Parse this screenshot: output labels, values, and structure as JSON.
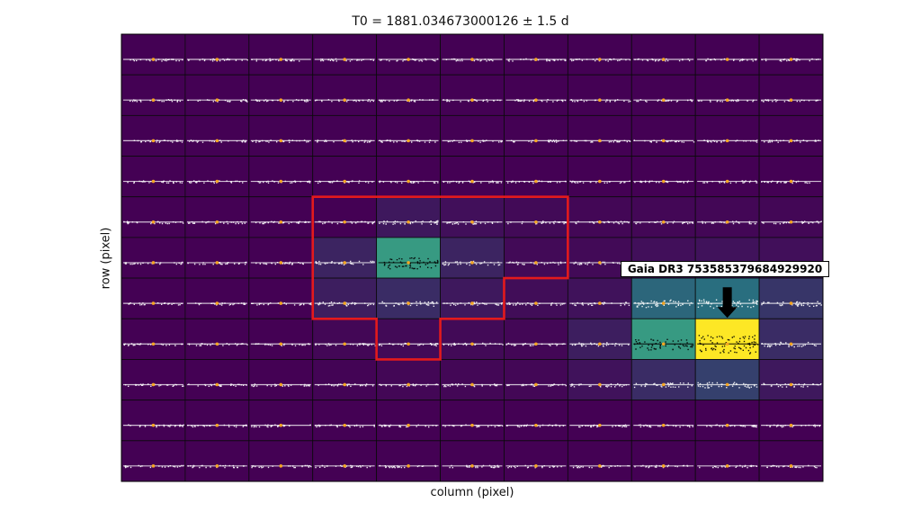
{
  "chart_data": {
    "type": "heatmap",
    "title": "T0 = 1881.034673000126 ± 1.5 d",
    "xlabel": "column (pixel)",
    "ylabel": "row (pixel)",
    "n_rows": 11,
    "n_cols": 11,
    "grid": true,
    "description_values": "per-pixel flux level (0 = dark purple, 1 = yellow), rows listed top to bottom",
    "pixel_levels": [
      [
        0,
        0,
        0,
        0,
        0,
        0,
        0,
        0,
        0,
        0,
        0
      ],
      [
        0,
        0,
        0,
        0,
        0,
        0,
        0,
        0,
        0,
        0,
        0
      ],
      [
        0,
        0,
        0,
        0,
        0,
        0,
        0,
        0,
        0,
        0,
        0
      ],
      [
        0,
        0,
        0,
        0,
        0,
        0,
        0,
        0,
        0,
        0,
        0
      ],
      [
        0,
        0,
        0,
        0,
        0.08,
        0.05,
        0.03,
        0.02,
        0.02,
        0.02,
        0.02
      ],
      [
        0,
        0,
        0,
        0.12,
        0.55,
        0.12,
        0.03,
        0.03,
        0.05,
        0.06,
        0.05
      ],
      [
        0,
        0,
        0,
        0.1,
        0.15,
        0.08,
        0.04,
        0.06,
        0.35,
        0.38,
        0.18
      ],
      [
        0,
        0,
        0,
        0.02,
        0.03,
        0.03,
        0.02,
        0.1,
        0.55,
        1.0,
        0.15
      ],
      [
        0,
        0,
        0,
        0.01,
        0.02,
        0.02,
        0.02,
        0.06,
        0.15,
        0.22,
        0.08
      ],
      [
        0,
        0,
        0,
        0,
        0,
        0,
        0,
        0,
        0,
        0,
        0
      ],
      [
        0,
        0,
        0,
        0,
        0,
        0,
        0,
        0,
        0,
        0,
        0
      ]
    ],
    "aperture_mask": [
      [
        4,
        3
      ],
      [
        4,
        4
      ],
      [
        4,
        5
      ],
      [
        4,
        6
      ],
      [
        5,
        3
      ],
      [
        5,
        4
      ],
      [
        5,
        5
      ],
      [
        5,
        6
      ],
      [
        6,
        3
      ],
      [
        6,
        4
      ],
      [
        6,
        5
      ],
      [
        7,
        4
      ]
    ],
    "target_label": "Gaia DR3 753585379684929920",
    "target_pixel": [
      7,
      9
    ],
    "colors": {
      "low": "#440154",
      "mid": "#21918c",
      "high": "#fde725",
      "aperture": "#e31a1c",
      "points_light": "#ffffff",
      "points_dark": "#000000",
      "transit_marker": "#f5a623"
    }
  }
}
